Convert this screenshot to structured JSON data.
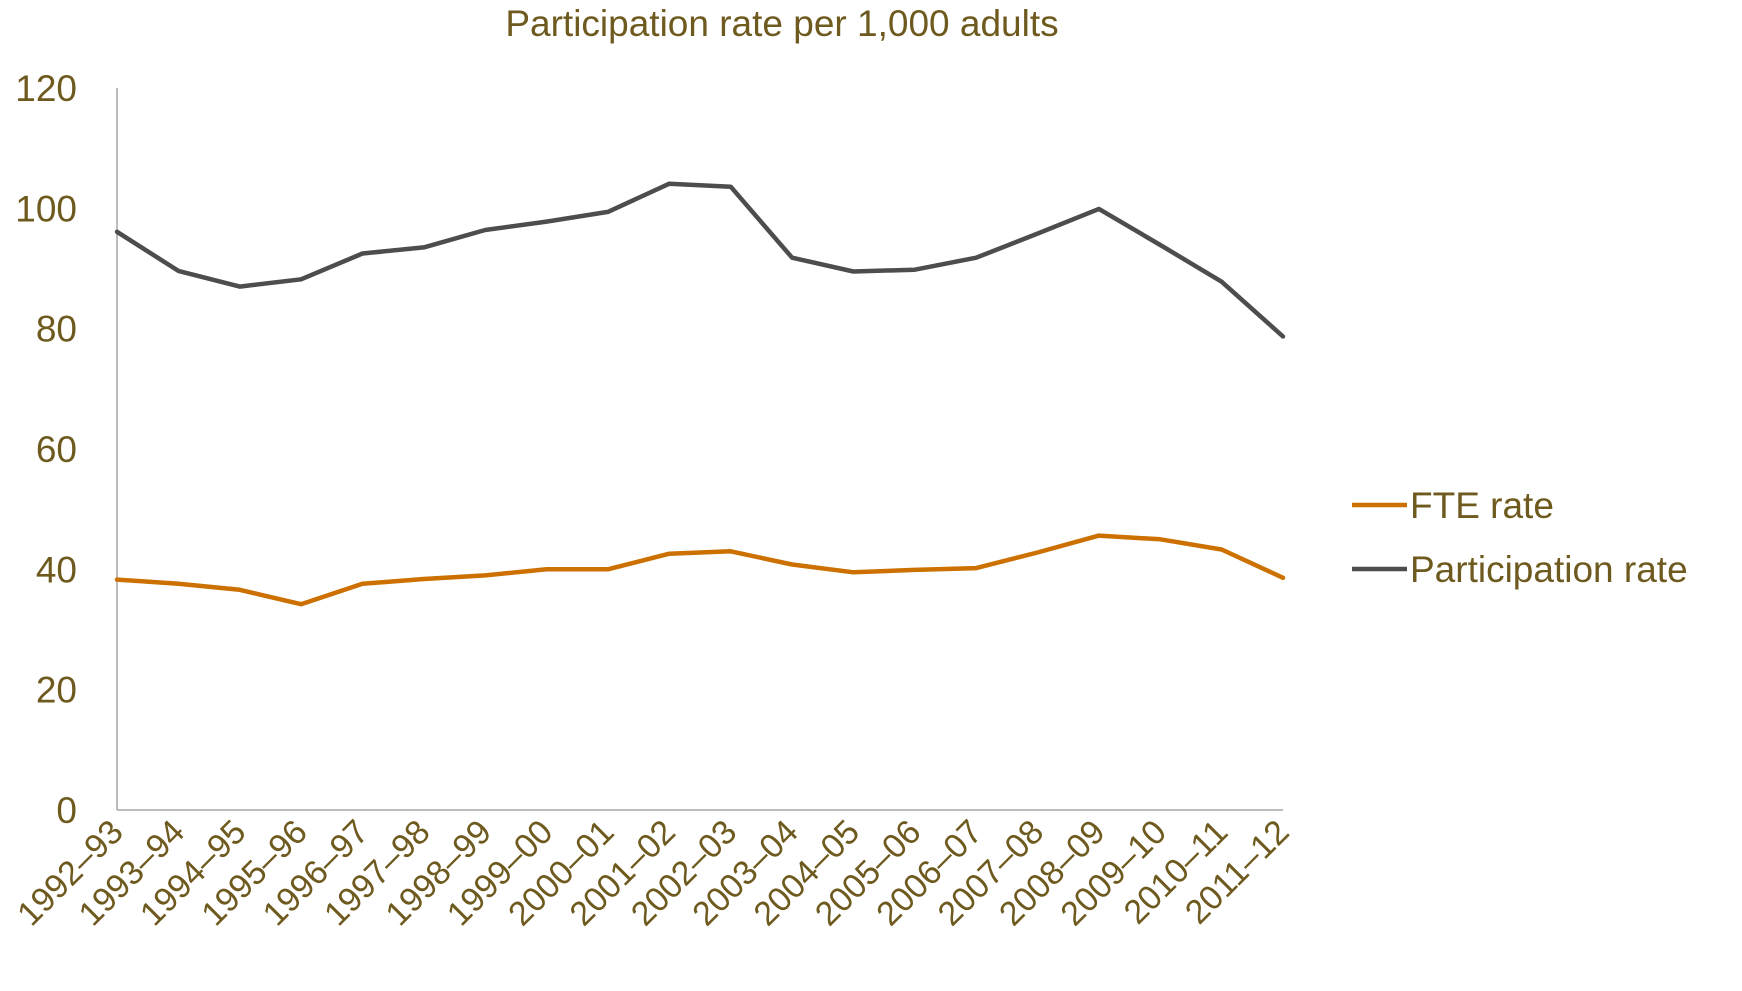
{
  "colors": {
    "text": "#6E5A1E",
    "axis": "#A6A6A6",
    "fte": "#CC7000",
    "participation": "#4D4D4F"
  },
  "chart_data": {
    "type": "line",
    "title": "Participation rate per 1,000 adults",
    "xlabel": "",
    "ylabel": "",
    "ylim": [
      0,
      120
    ],
    "yticks": [
      0,
      20,
      40,
      60,
      80,
      100,
      120
    ],
    "grid": false,
    "legend_position": "right",
    "categories": [
      "1992–93",
      "1993–94",
      "1994–95",
      "1995–96",
      "1996–97",
      "1997–98",
      "1998–99",
      "1999–00",
      "2000–01",
      "2001–02",
      "2002–03",
      "2003–04",
      "2004–05",
      "2005–06",
      "2006–07",
      "2007–08",
      "2008–09",
      "2009–10",
      "2010–11",
      "2011–12"
    ],
    "series": [
      {
        "name": "FTE rate",
        "color": "#CC7000",
        "values": [
          38.3,
          37.6,
          36.6,
          34.2,
          37.6,
          38.4,
          39.0,
          40.0,
          40.0,
          42.6,
          43.0,
          40.8,
          39.5,
          39.9,
          40.2,
          42.8,
          45.6,
          45.0,
          43.3,
          38.6
        ]
      },
      {
        "name": "Participation rate",
        "color": "#4D4D4F",
        "values": [
          96.1,
          89.6,
          87.0,
          88.2,
          92.5,
          93.5,
          96.4,
          97.8,
          99.4,
          104.1,
          103.6,
          91.8,
          89.5,
          89.8,
          91.8,
          95.8,
          99.9,
          93.9,
          87.8,
          78.7
        ]
      }
    ]
  }
}
